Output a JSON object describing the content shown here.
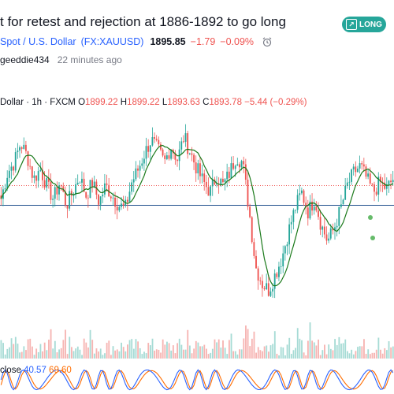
{
  "idea": {
    "title": "t for retest and rejection at 1886-1892 to go long",
    "badge": "LONG",
    "symbol_name": "Spot / U.S. Dollar",
    "symbol_code": "(FX:XAUUSD)",
    "last_price": "1895.85",
    "change": "−1.79",
    "change_pct": "−0.09%",
    "author": "geeddie434",
    "published": "22 minutes ago"
  },
  "chart": {
    "legend_prefix": "Dollar · 1h · FXCM",
    "o_label": "O",
    "o": "1899.22",
    "h_label": "H",
    "h": "1899.22",
    "l_label": "L",
    "l": "1893.63",
    "c_label": "C",
    "c": "1893.78",
    "chg": "−5.44 (−0.29%)",
    "stoch_label": "close",
    "stoch_k": "40.57",
    "stoch_d": "69.60"
  },
  "colors": {
    "up": "#26a69a",
    "down": "#ef5350",
    "ma": "#1b7a1b",
    "hline": "#1e4e8c",
    "dotted": "#ef5350",
    "marker": "#66bb6a",
    "stoch_k": "#2962ff",
    "stoch_d": "#ff6d00"
  },
  "chart_data": {
    "type": "candlestick",
    "symbol": "FX:XAUUSD",
    "interval": "1h",
    "close_path": [
      1888,
      1896,
      1899,
      1905,
      1901,
      1894,
      1897,
      1892,
      1888,
      1893,
      1886,
      1890,
      1895,
      1889,
      1893,
      1887,
      1892,
      1889,
      1886,
      1885,
      1893,
      1897,
      1902,
      1906,
      1903,
      1899,
      1904,
      1900,
      1907,
      1902,
      1897,
      1893,
      1890,
      1895,
      1892,
      1896,
      1901,
      1899,
      1884,
      1867,
      1862,
      1860,
      1865,
      1870,
      1878,
      1885,
      1890,
      1884,
      1888,
      1880,
      1875,
      1879,
      1885,
      1892,
      1896,
      1898,
      1894,
      1890,
      1893,
      1891,
      1894
    ],
    "horizontal_lines": [
      1886,
      1892
    ]
  }
}
